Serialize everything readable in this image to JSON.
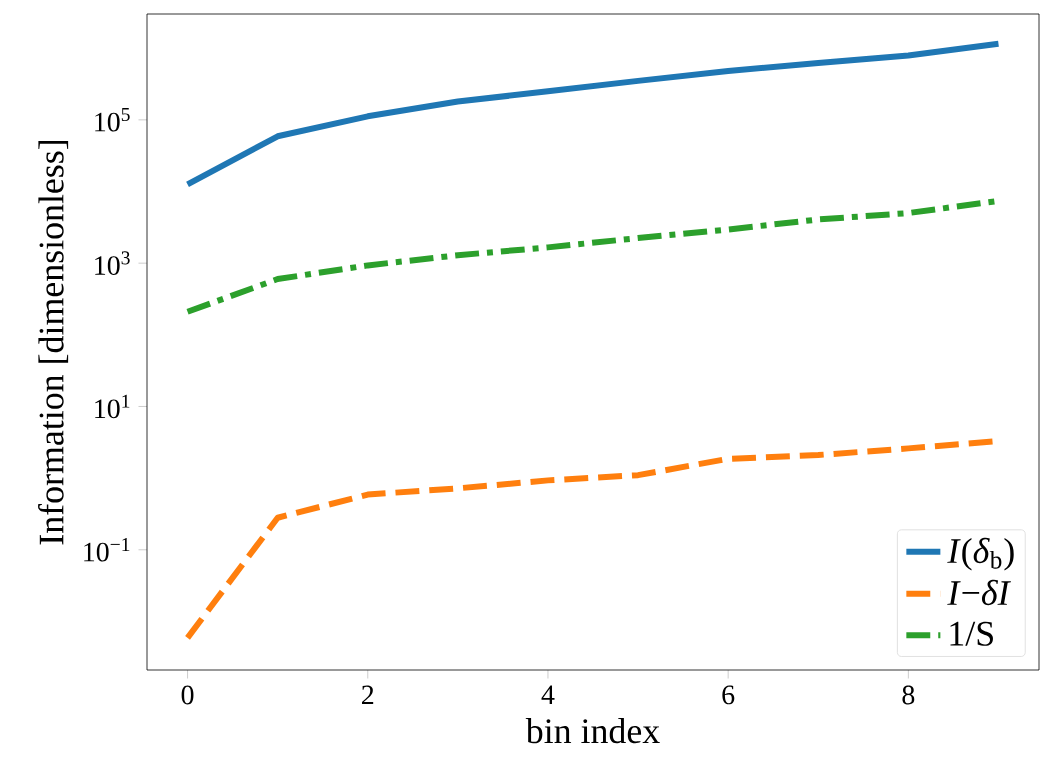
{
  "chart_data": {
    "type": "line",
    "xlabel": "bin index",
    "ylabel": "Information [dimensionless]",
    "log": "y",
    "legend": "bottom right",
    "x": [
      0,
      1,
      2,
      3,
      4,
      5,
      6,
      7,
      8,
      9
    ],
    "xlim": [
      -0.45,
      9.45
    ],
    "xticks": [
      0,
      2,
      4,
      6,
      8
    ],
    "ylim": [
      0.0021,
      3000000
    ],
    "yticks": [
      {
        "value": 0.1,
        "label": "10$^{−1}$"
      },
      {
        "value": 10,
        "label": "10$^{1}$"
      },
      {
        "value": 1000,
        "label": "10$^{3}$"
      },
      {
        "value": 100000,
        "label": "10$^{5}$"
      }
    ],
    "series": [
      {
        "name": "*I*(*δ*$_{b}$)",
        "color": "#1f77b4",
        "line_style": "solid",
        "values": [
          12600,
          59000,
          112000,
          180000,
          250000,
          350000,
          480000,
          620000,
          790000,
          1150000
        ]
      },
      {
        "name": "*I*−*δI*",
        "color": "#ff7f0e",
        "line_style": "dashed",
        "values": [
          0.0059,
          0.28,
          0.59,
          0.72,
          0.93,
          1.1,
          1.86,
          2.1,
          2.6,
          3.3
        ]
      },
      {
        "name": "1/S",
        "color": "#2ca02c",
        "line_style": "dashdot",
        "values": [
          210,
          600,
          930,
          1290,
          1660,
          2240,
          2950,
          4070,
          5000,
          7400
        ]
      }
    ]
  }
}
